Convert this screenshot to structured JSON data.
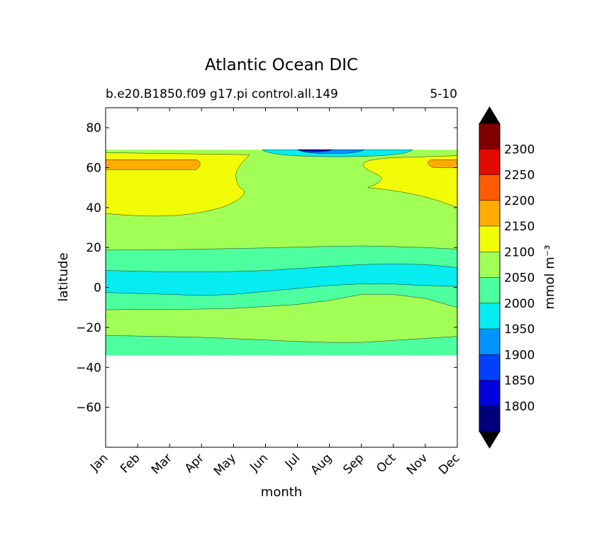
{
  "chart_data": {
    "type": "heatmap",
    "title": "Atlantic Ocean DIC",
    "subtitle_left": "b.e20.B1850.f09 g17.pi control.all.149",
    "subtitle_right": "5-10",
    "xlabel": "month",
    "ylabel": "latitude",
    "x_tick_labels": [
      "Jan",
      "Feb",
      "Mar",
      "Apr",
      "May",
      "Jun",
      "Jul",
      "Aug",
      "Sep",
      "Oct",
      "Nov",
      "Dec"
    ],
    "x_values": [
      1,
      2,
      3,
      4,
      5,
      6,
      7,
      8,
      9,
      10,
      11,
      12
    ],
    "xlim": [
      1,
      12
    ],
    "y_ticks": [
      80,
      60,
      40,
      20,
      0,
      -20,
      -40,
      -60
    ],
    "y_tick_labels": [
      "80",
      "60",
      "40",
      "20",
      "0",
      "−20",
      "−40",
      "−60"
    ],
    "ylim": [
      -80,
      90
    ],
    "data_lat_range": [
      -34,
      69
    ],
    "colorbar": {
      "label": "mmol m⁻³",
      "levels": [
        1750,
        1800,
        1850,
        1900,
        1950,
        2000,
        2050,
        2100,
        2150,
        2200,
        2250,
        2300,
        2350
      ],
      "tick_labels": [
        "1800",
        "1850",
        "1900",
        "1950",
        "2000",
        "2050",
        "2100",
        "2150",
        "2200",
        "2250",
        "2300"
      ],
      "colors": [
        "#00007f",
        "#0000dc",
        "#0040ff",
        "#0094ff",
        "#06ecf1",
        "#4dff9e",
        "#a2ff55",
        "#f1fc06",
        "#ffac00",
        "#ff5d00",
        "#e30b00",
        "#800000"
      ],
      "under_color": "#000000",
      "over_color": "#000000"
    },
    "contour_boundaries": [
      {
        "level": 2000,
        "lower_boundary_lat": [
          -34,
          -34,
          -34,
          -34,
          -34,
          -34,
          -34,
          -34,
          -34,
          -34,
          -34,
          -34
        ],
        "upper_boundary_lat": [
          -24,
          -24.3,
          -24.6,
          -25,
          -25.6,
          -26.3,
          -27,
          -27.5,
          -27.5,
          -26.5,
          -25.5,
          -24.5
        ]
      },
      {
        "level": 2050,
        "lower_boundary_lat": [
          -24,
          -24.3,
          -24.6,
          -25,
          -25.6,
          -26.3,
          -27,
          -27.5,
          -27.5,
          -26.5,
          -25.5,
          -24.5
        ],
        "upper_boundary_lat": [
          -11.2,
          -11,
          -11,
          -10.8,
          -10.5,
          -9.5,
          -8.5,
          -6.5,
          -3.5,
          -3.5,
          -5.5,
          -10
        ]
      },
      {
        "level": 2000,
        "lower_boundary_lat": [
          -11.2,
          -11,
          -11,
          -10.8,
          -10.5,
          -9.5,
          -8.5,
          -6.5,
          -3.5,
          -3.5,
          -5.5,
          -10
        ],
        "upper_boundary_lat": [
          -2.5,
          -3,
          -3.5,
          -4,
          -3.5,
          -2,
          -0.5,
          1,
          1.8,
          1.7,
          1,
          0.5
        ]
      },
      {
        "level": 1950,
        "lower_boundary_lat": [
          -2.5,
          -3,
          -3.5,
          -4,
          -3.5,
          -2,
          -0.5,
          1,
          1.8,
          1.7,
          1,
          0.5
        ],
        "upper_boundary_lat": [
          8.5,
          8.2,
          7.8,
          7.8,
          8,
          8.5,
          9.5,
          10.5,
          11.5,
          11.8,
          11.5,
          10
        ]
      },
      {
        "level": 2000,
        "lower_boundary_lat": [
          8.5,
          8.2,
          7.8,
          7.8,
          8,
          8.5,
          9.5,
          10.5,
          11.5,
          11.8,
          11.5,
          10
        ],
        "upper_boundary_lat": [
          18.7,
          18.8,
          18.9,
          19.2,
          19.5,
          19.8,
          20.2,
          20.6,
          20.8,
          20.5,
          20,
          19.2
        ]
      },
      {
        "level": 2050,
        "lower_boundary_lat": [
          18.7,
          18.8,
          18.9,
          19.2,
          19.5,
          19.8,
          20.2,
          20.6,
          20.8,
          20.5,
          20,
          19.2
        ],
        "upper_boundary_lat": [
          69,
          69,
          69,
          69,
          69,
          69,
          69,
          69,
          69,
          69,
          69,
          69
        ]
      }
    ],
    "high_regions": [
      {
        "level": 2100,
        "description_months": "Jan-May and Oct-Dec",
        "lat_range": [
          36,
          67
        ]
      },
      {
        "level": 2150,
        "months": [
          "Jan",
          "Apr"
        ],
        "lat_range": [
          59,
          64
        ]
      },
      {
        "level": 2150,
        "months": [
          "Nov",
          "Dec"
        ],
        "lat_range": [
          60,
          64
        ]
      }
    ],
    "low_regions": [
      {
        "level": 1950,
        "months": [
          "Jun",
          "Oct"
        ],
        "lat_range": [
          65.5,
          69
        ]
      },
      {
        "level": 1900,
        "months": [
          "Jul",
          "Sep"
        ],
        "lat_range": [
          67,
          69
        ]
      },
      {
        "level": 1850,
        "months": [
          "Jul",
          "Aug"
        ],
        "lat_range": [
          67.8,
          69
        ]
      },
      {
        "level": 1800,
        "months": [
          "Jul",
          "Aug"
        ],
        "lat_range": [
          68.3,
          69
        ]
      }
    ]
  }
}
